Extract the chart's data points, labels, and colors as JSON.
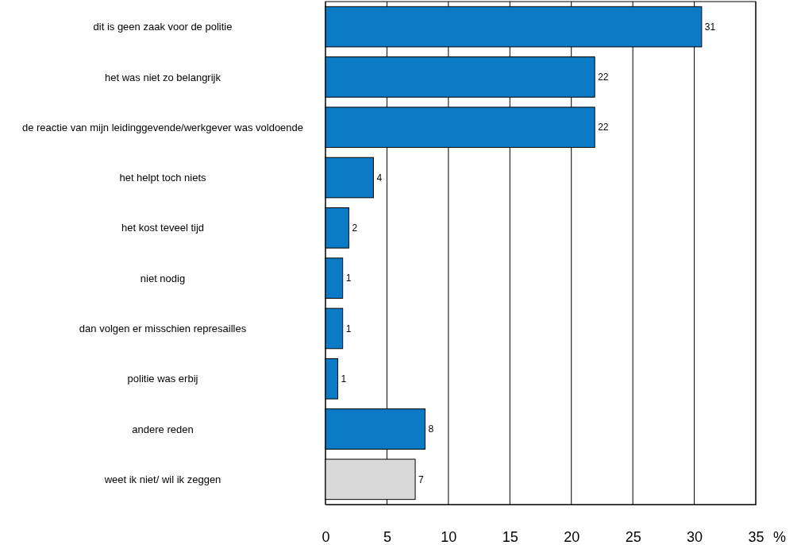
{
  "chart_data": {
    "type": "bar",
    "orientation": "horizontal",
    "categories": [
      "dit is geen zaak voor de politie",
      "het was niet zo belangrijk",
      "de reactie van mijn leidinggevende/werkgever was voldoende",
      "het helpt toch niets",
      "het kost teveel tijd",
      "niet nodig",
      "dan volgen er misschien represailles",
      "politie was erbij",
      "andere reden",
      "weet ik niet/ wil ik zeggen"
    ],
    "values": [
      30.6,
      21.9,
      21.9,
      3.9,
      1.9,
      1.4,
      1.4,
      1.0,
      8.1,
      7.3
    ],
    "value_labels": [
      "31",
      "22",
      "22",
      "4",
      "2",
      "1",
      "1",
      "1",
      "8",
      "7"
    ],
    "colors": [
      "#0a7bc4",
      "#0a7bc4",
      "#0a7bc4",
      "#0a7bc4",
      "#0a7bc4",
      "#0a7bc4",
      "#0a7bc4",
      "#0a7bc4",
      "#0a7bc4",
      "#d9d9d9"
    ],
    "xlabel": "%",
    "xlim": [
      0,
      35
    ],
    "xticks": [
      0,
      5,
      10,
      15,
      20,
      25,
      30,
      35
    ],
    "grid": "x"
  }
}
